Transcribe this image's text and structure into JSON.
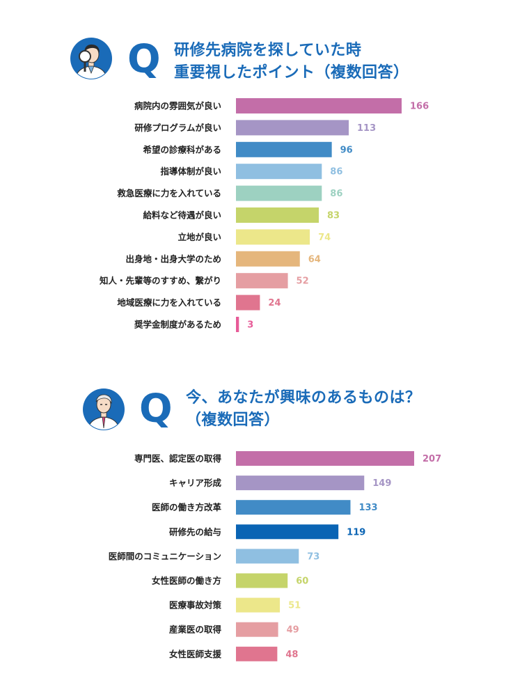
{
  "questions": [
    {
      "q_mark": "Q",
      "title_line1": "研修先病院を探していた時",
      "title_line2": "重要視したポイント（複数回答）"
    },
    {
      "q_mark": "Q",
      "title_line1": "今、あなたが興味のあるものは？",
      "title_line2": "（複数回答）"
    }
  ],
  "chart_data": [
    {
      "type": "bar",
      "orientation": "horizontal",
      "title": "研修先病院を探していた時重要視したポイント（複数回答）",
      "categories": [
        "病院内の雰囲気が良い",
        "研修プログラムが良い",
        "希望の診療科がある",
        "指導体制が良い",
        "救急医療に力を入れている",
        "給料など待遇が良い",
        "立地が良い",
        "出身地・出身大学のため",
        "知人・先輩等のすすめ、繋がり",
        "地域医療に力を入れている",
        "奨学金制度があるため"
      ],
      "values": [
        166,
        113,
        96,
        86,
        86,
        83,
        74,
        64,
        52,
        24,
        3
      ],
      "colors": [
        "#c36ea8",
        "#a595c5",
        "#418bc6",
        "#8fbfe1",
        "#9dd1c1",
        "#c5d46a",
        "#ece78a",
        "#e5b67c",
        "#e59ea2",
        "#e0758f",
        "#e75b98"
      ],
      "grid": false,
      "legend": "none"
    },
    {
      "type": "bar",
      "orientation": "horizontal",
      "title": "今、あなたが興味のあるものは？（複数回答）",
      "categories": [
        "専門医、認定医の取得",
        "キャリア形成",
        "医師の働き方改革",
        "研修先の給与",
        "医師間のコミュニケーション",
        "女性医師の働き方",
        "医療事故対策",
        "産業医の取得",
        "女性医師支援"
      ],
      "values": [
        207,
        149,
        133,
        119,
        73,
        60,
        51,
        49,
        48
      ],
      "colors": [
        "#c36ea8",
        "#a595c5",
        "#418bc6",
        "#0a64b4",
        "#8fbfe1",
        "#c5d46a",
        "#ece78a",
        "#e59ea2",
        "#e0758f"
      ],
      "grid": false,
      "legend": "none"
    }
  ]
}
